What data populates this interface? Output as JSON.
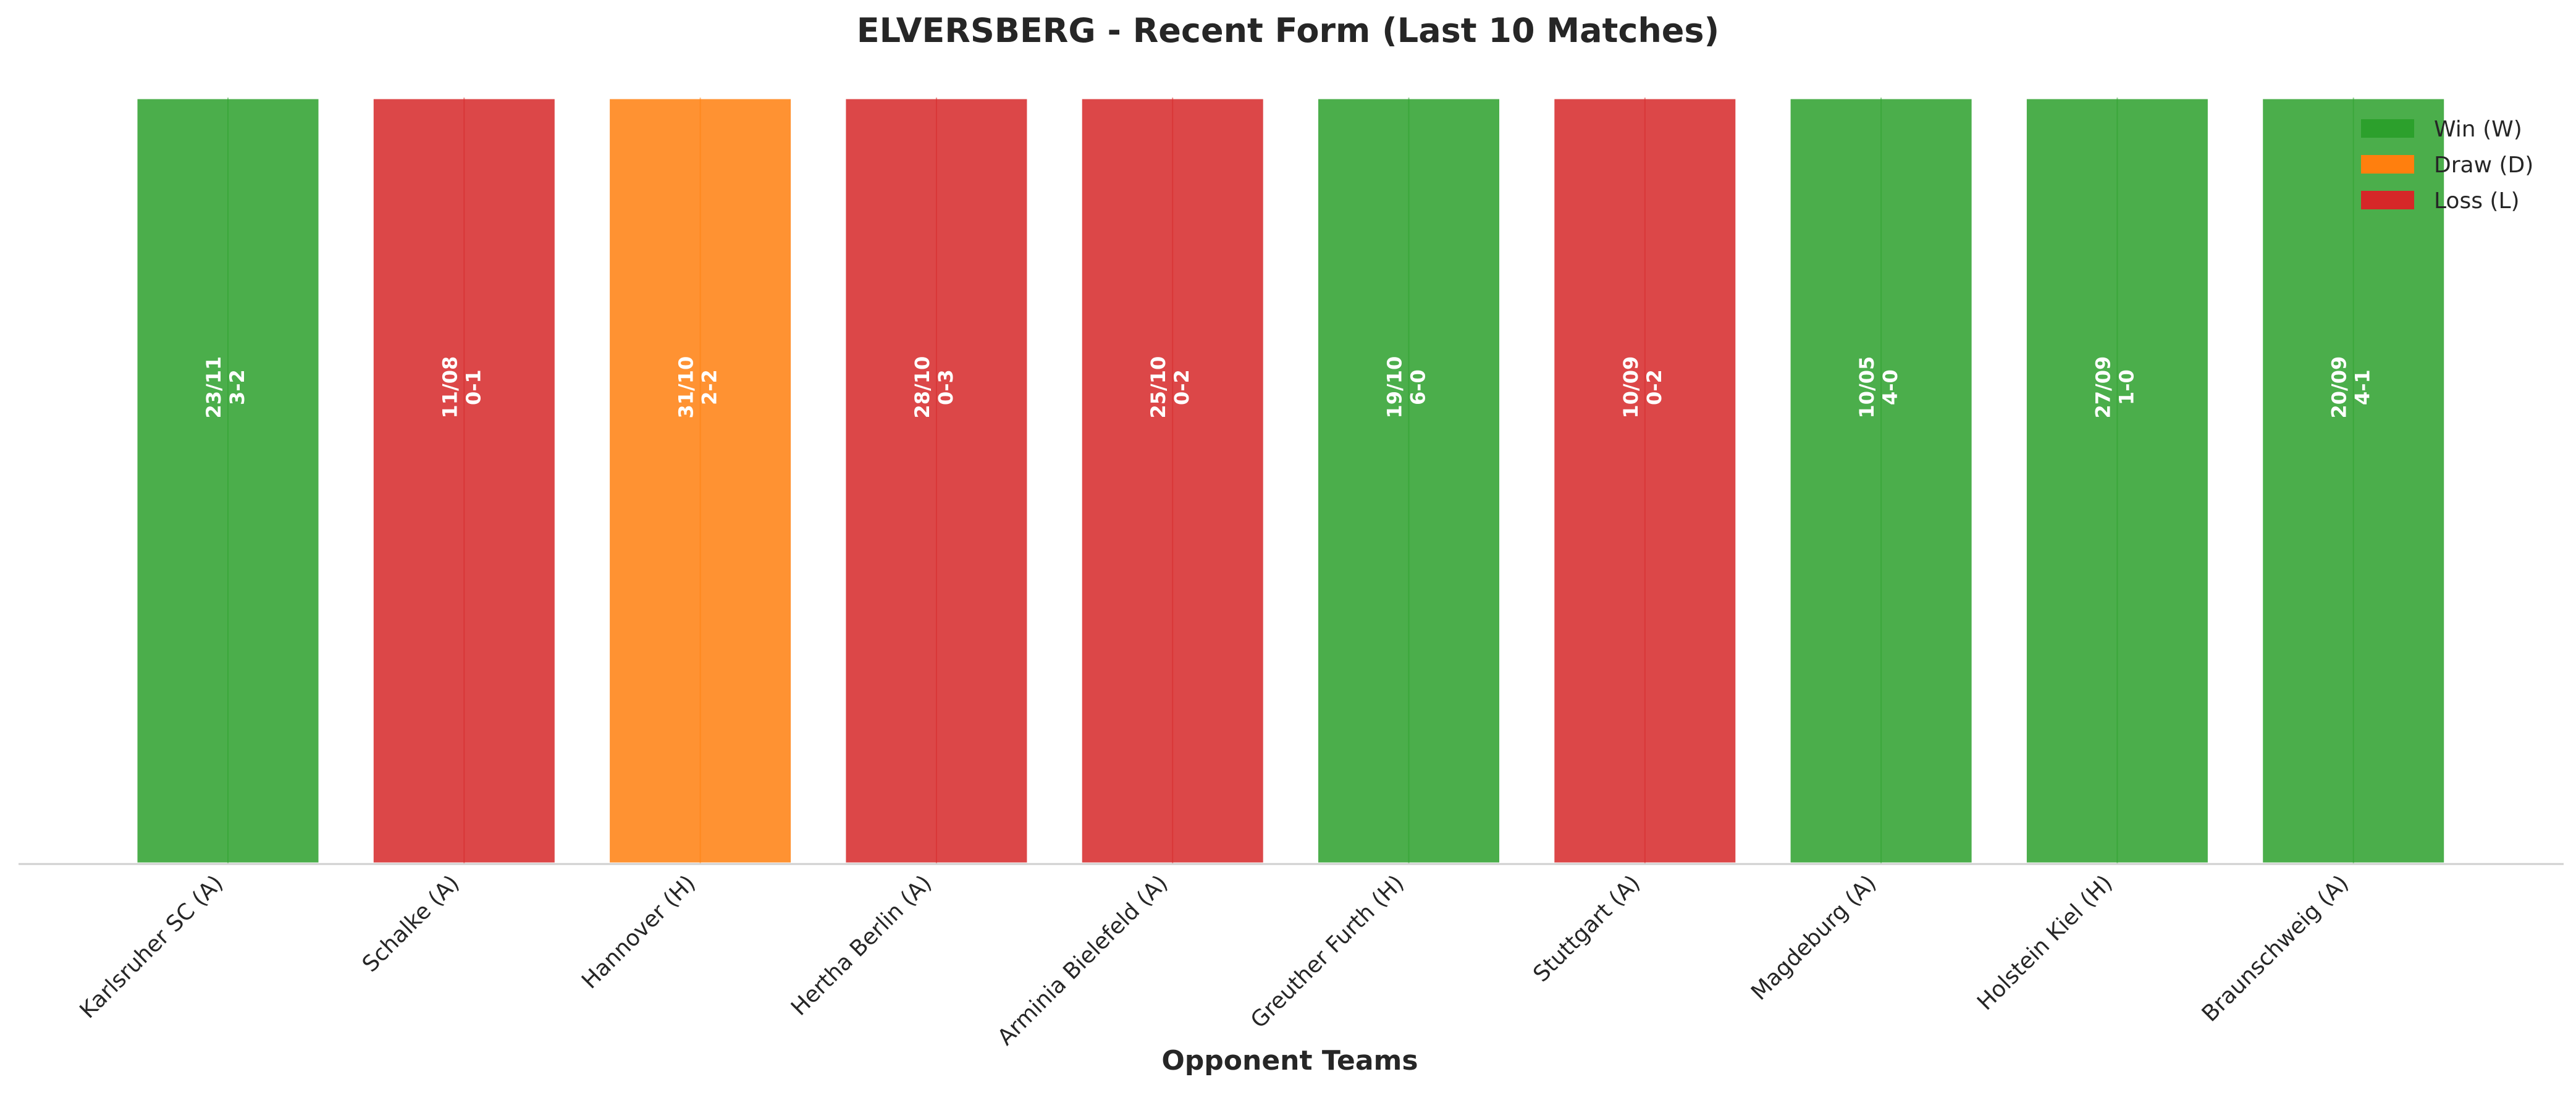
{
  "chart_data": {
    "type": "bar",
    "title": "ELVERSBERG - Recent Form (Last 10 Matches)",
    "xlabel": "Opponent Teams",
    "ylabel": "",
    "ylim": [
      0,
      1
    ],
    "grid": false,
    "legend_position": "top-right",
    "legend": [
      {
        "key": "W",
        "label": "Win (W)",
        "color": "#2ca02c"
      },
      {
        "key": "D",
        "label": "Draw (D)",
        "color": "#ff7f0e"
      },
      {
        "key": "L",
        "label": "Loss (L)",
        "color": "#d62728"
      }
    ],
    "categories": [
      "Karlsruher SC (A)",
      "Schalke (A)",
      "Hannover (H)",
      "Hertha Berlin (A)",
      "Arminia Bielefeld (A)",
      "Greuther Furth (H)",
      "Stuttgart (A)",
      "Magdeburg (A)",
      "Holstein Kiel (H)",
      "Braunschweig (A)"
    ],
    "values": [
      1,
      1,
      1,
      1,
      1,
      1,
      1,
      1,
      1,
      1
    ],
    "results": [
      "W",
      "L",
      "D",
      "L",
      "L",
      "W",
      "L",
      "W",
      "W",
      "W"
    ],
    "dates": [
      "23/11",
      "11/08",
      "31/10",
      "28/10",
      "25/10",
      "19/10",
      "10/09",
      "10/05",
      "27/09",
      "20/09"
    ],
    "scores": [
      "3-2",
      "0-1",
      "2-2",
      "0-3",
      "0-2",
      "6-0",
      "0-2",
      "4-0",
      "1-0",
      "4-1"
    ]
  }
}
